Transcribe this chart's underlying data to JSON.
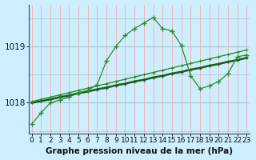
{
  "title": "Graphe pression niveau de la mer (hPa)",
  "bg_color": "#cceeff",
  "grid_color_v": "#ffaaaa",
  "grid_color_h": "#99cccc",
  "line_color_dark": "#1a5c1a",
  "line_color_mid": "#2d8b2d",
  "marker": "+",
  "x_ticks": [
    0,
    1,
    2,
    3,
    4,
    5,
    6,
    7,
    8,
    9,
    10,
    11,
    12,
    13,
    14,
    15,
    16,
    17,
    18,
    19,
    20,
    21,
    22,
    23
  ],
  "xlim": [
    -0.3,
    23.3
  ],
  "ylim": [
    1017.45,
    1019.75
  ],
  "y_ticks": [
    1018,
    1019
  ],
  "series_main": [
    1017.62,
    1017.82,
    1018.0,
    1018.05,
    1018.1,
    1018.18,
    1018.22,
    1018.32,
    1018.75,
    1019.0,
    1019.2,
    1019.32,
    1019.42,
    1019.52,
    1019.32,
    1019.28,
    1019.02,
    1018.48,
    1018.25,
    1018.3,
    1018.38,
    1018.52,
    1018.82,
    1018.85
  ],
  "series_line1": [
    1018.02,
    1018.06,
    1018.1,
    1018.14,
    1018.18,
    1018.22,
    1018.26,
    1018.3,
    1018.34,
    1018.38,
    1018.42,
    1018.46,
    1018.5,
    1018.54,
    1018.58,
    1018.62,
    1018.66,
    1018.7,
    1018.74,
    1018.78,
    1018.82,
    1018.86,
    1018.9,
    1018.94
  ],
  "series_line2": [
    1018.0,
    1018.03,
    1018.06,
    1018.1,
    1018.13,
    1018.17,
    1018.2,
    1018.24,
    1018.27,
    1018.31,
    1018.34,
    1018.38,
    1018.41,
    1018.45,
    1018.48,
    1018.52,
    1018.55,
    1018.59,
    1018.62,
    1018.66,
    1018.69,
    1018.73,
    1018.76,
    1018.8
  ],
  "tick_fontsize": 6.5,
  "xlabel_fontsize": 7.5,
  "ylabel_fontsize": 7.5
}
